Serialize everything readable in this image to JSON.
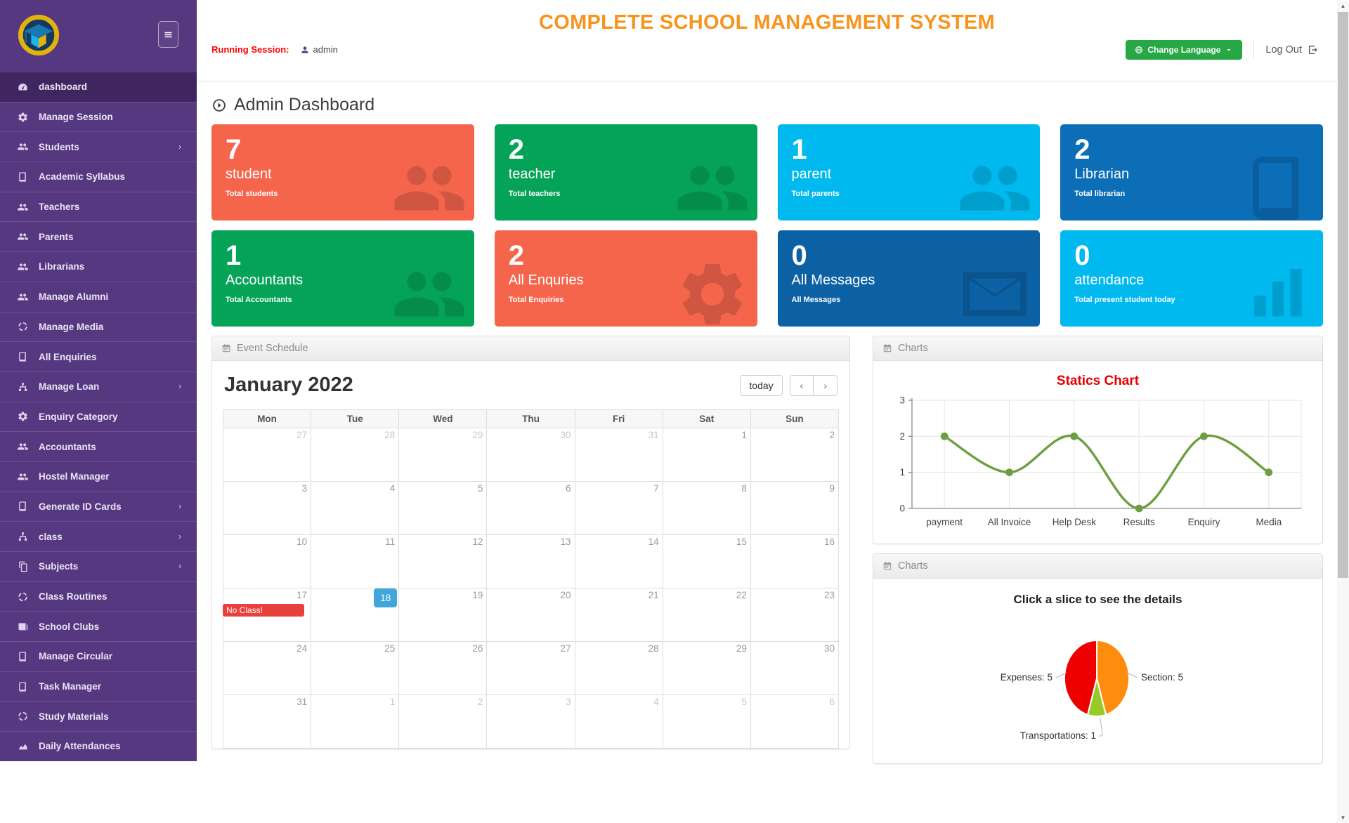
{
  "theme": {
    "sidebar_purple": "#553880",
    "sidebar_active": "#402660",
    "title_orange": "#f7941e",
    "session_red": "#ff0000",
    "success_green": "#28a745",
    "today_blue": "#41a7da",
    "event_red": "#e8403c"
  },
  "header": {
    "title": "COMPLETE SCHOOL MANAGEMENT SYSTEM",
    "running_session_label": "Running Session:",
    "user": "admin",
    "change_language_label": "Change Language",
    "logout_label": "Log Out"
  },
  "sidebar": {
    "items": [
      {
        "label": "dashboard",
        "icon": "gauge",
        "active": true
      },
      {
        "label": "Manage Session",
        "icon": "gear"
      },
      {
        "label": "Students",
        "icon": "users",
        "chevron": true
      },
      {
        "label": "Academic Syllabus",
        "icon": "book"
      },
      {
        "label": "Teachers",
        "icon": "users"
      },
      {
        "label": "Parents",
        "icon": "users"
      },
      {
        "label": "Librarians",
        "icon": "users"
      },
      {
        "label": "Manage Alumni",
        "icon": "users"
      },
      {
        "label": "Manage Media",
        "icon": "target"
      },
      {
        "label": "All Enquiries",
        "icon": "book"
      },
      {
        "label": "Manage Loan",
        "icon": "sitemap",
        "chevron": true
      },
      {
        "label": "Enquiry Category",
        "icon": "gear"
      },
      {
        "label": "Accountants",
        "icon": "users"
      },
      {
        "label": "Hostel Manager",
        "icon": "users"
      },
      {
        "label": "Generate ID Cards",
        "icon": "book",
        "chevron": true
      },
      {
        "label": "class",
        "icon": "sitemap",
        "chevron": true
      },
      {
        "label": "Subjects",
        "icon": "copy",
        "chevron": true
      },
      {
        "label": "Class Routines",
        "icon": "target"
      },
      {
        "label": "School Clubs",
        "icon": "newspaper"
      },
      {
        "label": "Manage Circular",
        "icon": "book"
      },
      {
        "label": "Task Manager",
        "icon": "book"
      },
      {
        "label": "Study Materials",
        "icon": "target"
      },
      {
        "label": "Daily Attendances",
        "icon": "chart-area"
      }
    ]
  },
  "dashboard": {
    "heading": "Admin Dashboard",
    "cards": [
      {
        "value": "7",
        "title": "student",
        "subtitle": "Total students",
        "color": "#f4654c",
        "watermark": "users"
      },
      {
        "value": "2",
        "title": "teacher",
        "subtitle": "Total teachers",
        "color": "#05a357",
        "watermark": "users"
      },
      {
        "value": "1",
        "title": "parent",
        "subtitle": "Total parents",
        "color": "#00b9ef",
        "watermark": "users"
      },
      {
        "value": "2",
        "title": "Librarian",
        "subtitle": "Total librarian",
        "color": "#0d6eb8",
        "watermark": "book"
      },
      {
        "value": "1",
        "title": "Accountants",
        "subtitle": "Total Accountants",
        "color": "#05a357",
        "watermark": "users"
      },
      {
        "value": "2",
        "title": "All Enquries",
        "subtitle": "Total Enquiries",
        "color": "#f4654c",
        "watermark": "gear"
      },
      {
        "value": "0",
        "title": "All Messages",
        "subtitle": "All Messages",
        "color": "#0c61a4",
        "watermark": "envelope"
      },
      {
        "value": "0",
        "title": "attendance",
        "subtitle": "Total present student today",
        "color": "#00b9ef",
        "watermark": "chart-bars"
      }
    ]
  },
  "calendar": {
    "panel_title": "Event Schedule",
    "month_title": "January 2022",
    "today_label": "today",
    "prev_label": "‹",
    "next_label": "›",
    "day_headers": [
      "Mon",
      "Tue",
      "Wed",
      "Thu",
      "Fri",
      "Sat",
      "Sun"
    ],
    "event": {
      "title": "No Class!",
      "day": 17
    },
    "today_day": 18,
    "weeks": [
      [
        {
          "d": 27,
          "o": 1
        },
        {
          "d": 28,
          "o": 1
        },
        {
          "d": 29,
          "o": 1
        },
        {
          "d": 30,
          "o": 1
        },
        {
          "d": 31,
          "o": 1
        },
        {
          "d": 1
        },
        {
          "d": 2
        }
      ],
      [
        {
          "d": 3
        },
        {
          "d": 4
        },
        {
          "d": 5
        },
        {
          "d": 6
        },
        {
          "d": 7
        },
        {
          "d": 8
        },
        {
          "d": 9
        }
      ],
      [
        {
          "d": 10
        },
        {
          "d": 11
        },
        {
          "d": 12
        },
        {
          "d": 13
        },
        {
          "d": 14
        },
        {
          "d": 15
        },
        {
          "d": 16
        }
      ],
      [
        {
          "d": 17,
          "e": 1
        },
        {
          "d": 18,
          "t": 1
        },
        {
          "d": 19
        },
        {
          "d": 20
        },
        {
          "d": 21
        },
        {
          "d": 22
        },
        {
          "d": 23
        }
      ],
      [
        {
          "d": 24
        },
        {
          "d": 25
        },
        {
          "d": 26
        },
        {
          "d": 27
        },
        {
          "d": 28
        },
        {
          "d": 29
        },
        {
          "d": 30
        }
      ],
      [
        {
          "d": 31
        },
        {
          "d": 1,
          "o": 1
        },
        {
          "d": 2,
          "o": 1
        },
        {
          "d": 3,
          "o": 1
        },
        {
          "d": 4,
          "o": 1
        },
        {
          "d": 5,
          "o": 1
        },
        {
          "d": 6,
          "o": 1
        }
      ]
    ]
  },
  "chart_panels": [
    {
      "title": "Charts"
    },
    {
      "title": "Charts"
    }
  ],
  "chart_data": [
    {
      "type": "line",
      "title": "Statics Chart",
      "title_color": "#e60000",
      "categories": [
        "payment",
        "All Invoice",
        "Help Desk",
        "Results",
        "Enquiry",
        "Media"
      ],
      "values": [
        2,
        1,
        2,
        0,
        2,
        1
      ],
      "xlabel": "",
      "ylabel": "",
      "ylim": [
        0,
        3
      ],
      "yticks": [
        0,
        1,
        2,
        3
      ],
      "grid": true,
      "line_color": "#6f9e3f",
      "smooth": true
    },
    {
      "type": "pie",
      "title": "Click a slice to see the details",
      "slices": [
        {
          "label": "Section",
          "value": 5,
          "color": "#fe8d0e",
          "label_side": "right"
        },
        {
          "label": "Transportations",
          "value": 1,
          "color": "#99cb28",
          "label_side": "bottom"
        },
        {
          "label": "Expenses",
          "value": 5,
          "color": "#ee0000",
          "label_side": "left"
        }
      ],
      "start_angle_deg": 0,
      "legend_position": "callout-labels"
    }
  ]
}
